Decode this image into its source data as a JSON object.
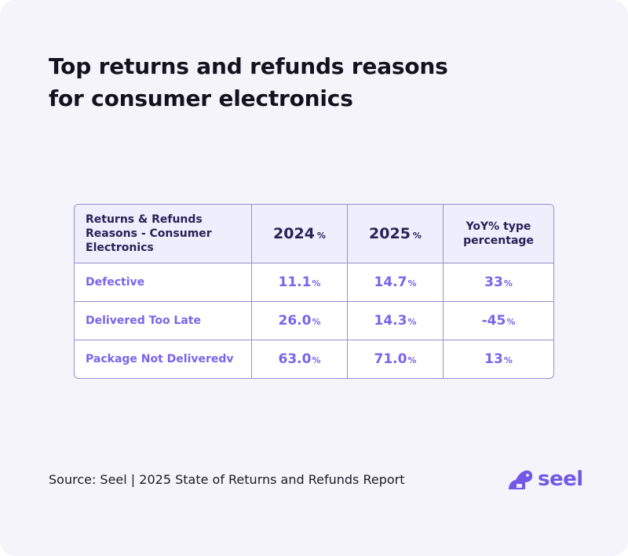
{
  "title_lines": [
    "Top returns and refunds reasons",
    "for consumer electronics"
  ],
  "chart_data": {
    "type": "table",
    "title": "Top returns and refunds reasons for consumer electronics",
    "columns": [
      {
        "label_lines": [
          "Returns & Refunds",
          "Reasons - Consumer",
          "Electronics"
        ]
      },
      {
        "label": "2024",
        "unit": "%"
      },
      {
        "label": "2025",
        "unit": "%"
      },
      {
        "label_lines": [
          "YoY% type",
          "percentage"
        ]
      }
    ],
    "rows": [
      {
        "reason": "Defective",
        "v2024": "11.1",
        "v2025": "14.7",
        "yoy": "33",
        "unit": "%"
      },
      {
        "reason": "Delivered Too Late",
        "v2024": "26.0",
        "v2025": "14.3",
        "yoy": "-45",
        "unit": "%"
      },
      {
        "reason": "Package Not Deliveredv",
        "v2024": "63.0",
        "v2025": "71.0",
        "yoy": "13",
        "unit": "%"
      }
    ]
  },
  "source": "Source: Seel | 2025 State of Returns and Refunds Report",
  "brand": {
    "name": "seel",
    "color": "#7159e6"
  },
  "colors": {
    "accent": "#7b63ea",
    "header_text": "#2a2057",
    "border": "#9690cd",
    "background": "#f5f4fb"
  }
}
